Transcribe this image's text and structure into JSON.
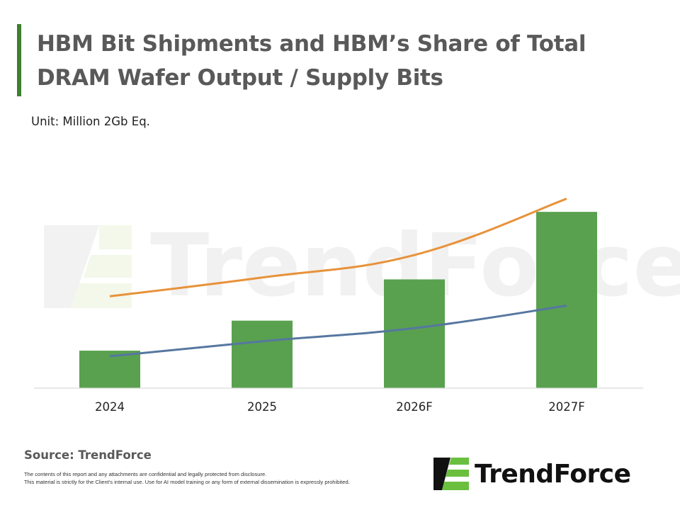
{
  "header": {
    "title": "HBM Bit Shipments and HBM’s Share of Total DRAM Wafer Output / Supply Bits",
    "unit": "Unit: Million 2Gb Eq."
  },
  "watermark": {
    "text": "TrendForce"
  },
  "colors": {
    "bar": "#59a14f",
    "series_orange": "#e8923a",
    "series_blue": "#5677a0",
    "title_accent": "#3f7f2f",
    "logo_green": "#6bbf3f"
  },
  "chart_data": {
    "type": "bar",
    "categories": [
      "2024",
      "2025",
      "2026F",
      "2027F"
    ],
    "series": [
      {
        "type": "bar",
        "values": [
          2.0,
          3.6,
          5.8,
          9.4
        ]
      },
      {
        "type": "line",
        "values": [
          4.9,
          5.9,
          7.1,
          10.1
        ]
      },
      {
        "type": "line",
        "values": [
          1.7,
          2.5,
          3.2,
          4.4
        ]
      }
    ],
    "ylim": [
      0,
      10.5
    ],
    "grid": false,
    "legend": "none"
  },
  "footer": {
    "source": "Source: TrendForce",
    "disclaimer_line1": "The contents of this report and any attachments are confidential and legally protected from disclosure.",
    "disclaimer_line2": "This material is strictly for the Client's internal use. Use for AI model training or any form of external dissemination is expressly prohibited.",
    "logo_text": "TrendForce",
    "logo_icon": "trendforce-logo-icon"
  }
}
